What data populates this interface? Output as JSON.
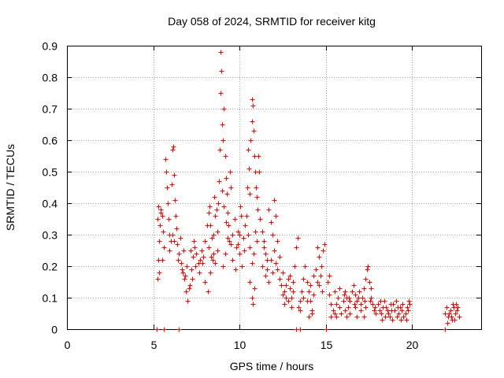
{
  "chart_data": {
    "type": "scatter",
    "title": "Day 058 of 2024, SRMTID for receiver kitg",
    "xlabel": "GPS time / hours",
    "ylabel": "SRMTID / TECUs",
    "xlim": [
      0,
      24
    ],
    "ylim": [
      0,
      0.9
    ],
    "xticks": [
      0,
      5,
      10,
      15,
      20
    ],
    "xtick_labels": [
      "0",
      "5",
      "10",
      "15",
      "20"
    ],
    "yticks": [
      0,
      0.1,
      0.2,
      0.3,
      0.4,
      0.5,
      0.6,
      0.7,
      0.8,
      0.9
    ],
    "ytick_labels": [
      "0",
      "0.1",
      "0.2",
      "0.3",
      "0.4",
      "0.5",
      "0.6",
      "0.7",
      "0.8",
      "0.9"
    ],
    "grid": true,
    "marker": "+",
    "color": "#ff0000",
    "series": [
      {
        "name": "SRMTID",
        "points": [
          [
            5.2,
            0.0
          ],
          [
            5.6,
            0.0
          ],
          [
            6.5,
            0.0
          ],
          [
            13.3,
            0.0
          ],
          [
            13.5,
            0.0
          ],
          [
            15.0,
            0.0
          ],
          [
            21.9,
            0.0
          ],
          [
            5.25,
            0.16
          ],
          [
            5.3,
            0.22
          ],
          [
            5.35,
            0.28
          ],
          [
            5.4,
            0.33
          ],
          [
            5.45,
            0.37
          ],
          [
            5.5,
            0.36
          ],
          [
            5.55,
            0.31
          ],
          [
            5.6,
            0.26
          ],
          [
            5.3,
            0.39
          ],
          [
            5.45,
            0.38
          ],
          [
            5.25,
            0.35
          ],
          [
            5.35,
            0.18
          ],
          [
            5.5,
            0.22
          ],
          [
            5.7,
            0.54
          ],
          [
            5.75,
            0.5
          ],
          [
            5.8,
            0.45
          ],
          [
            5.85,
            0.4
          ],
          [
            5.9,
            0.35
          ],
          [
            5.95,
            0.3
          ],
          [
            6.0,
            0.28
          ],
          [
            6.05,
            0.46
          ],
          [
            6.1,
            0.57
          ],
          [
            6.15,
            0.58
          ],
          [
            6.2,
            0.49
          ],
          [
            6.25,
            0.41
          ],
          [
            6.3,
            0.36
          ],
          [
            6.35,
            0.32
          ],
          [
            6.1,
            0.3
          ],
          [
            5.95,
            0.25
          ],
          [
            6.2,
            0.28
          ],
          [
            6.4,
            0.27
          ],
          [
            6.5,
            0.24
          ],
          [
            6.6,
            0.21
          ],
          [
            6.7,
            0.18
          ],
          [
            6.8,
            0.16
          ],
          [
            6.9,
            0.12
          ],
          [
            7.0,
            0.09
          ],
          [
            7.1,
            0.14
          ],
          [
            7.2,
            0.19
          ],
          [
            7.3,
            0.23
          ],
          [
            7.4,
            0.26
          ],
          [
            7.5,
            0.24
          ],
          [
            7.6,
            0.21
          ],
          [
            7.7,
            0.22
          ],
          [
            7.8,
            0.25
          ],
          [
            7.9,
            0.23
          ],
          [
            6.55,
            0.29
          ],
          [
            6.75,
            0.25
          ],
          [
            6.95,
            0.2
          ],
          [
            7.15,
            0.25
          ],
          [
            7.35,
            0.28
          ],
          [
            6.45,
            0.22
          ],
          [
            6.65,
            0.19
          ],
          [
            6.85,
            0.17
          ],
          [
            7.05,
            0.13
          ],
          [
            7.25,
            0.16
          ],
          [
            7.45,
            0.2
          ],
          [
            7.65,
            0.18
          ],
          [
            7.85,
            0.21
          ],
          [
            8.0,
            0.28
          ],
          [
            8.1,
            0.33
          ],
          [
            8.2,
            0.37
          ],
          [
            8.25,
            0.39
          ],
          [
            8.3,
            0.33
          ],
          [
            8.4,
            0.29
          ],
          [
            8.5,
            0.24
          ],
          [
            8.6,
            0.21
          ],
          [
            8.7,
            0.25
          ],
          [
            8.0,
            0.15
          ],
          [
            8.15,
            0.12
          ],
          [
            8.3,
            0.18
          ],
          [
            8.45,
            0.22
          ],
          [
            8.55,
            0.42
          ],
          [
            8.6,
            0.36
          ],
          [
            8.65,
            0.38
          ],
          [
            8.2,
            0.26
          ],
          [
            8.35,
            0.23
          ],
          [
            8.5,
            0.3
          ],
          [
            8.7,
            0.31
          ],
          [
            8.75,
            0.4
          ],
          [
            8.8,
            0.47
          ],
          [
            8.85,
            0.57
          ],
          [
            8.9,
            0.75
          ],
          [
            8.95,
            0.82
          ],
          [
            8.9,
            0.88
          ],
          [
            9.0,
            0.65
          ],
          [
            9.05,
            0.6
          ],
          [
            9.1,
            0.7
          ],
          [
            9.15,
            0.55
          ],
          [
            9.2,
            0.48
          ],
          [
            9.25,
            0.43
          ],
          [
            9.3,
            0.37
          ],
          [
            9.35,
            0.33
          ],
          [
            9.4,
            0.28
          ],
          [
            9.45,
            0.5
          ],
          [
            9.5,
            0.45
          ],
          [
            9.0,
            0.44
          ],
          [
            9.1,
            0.39
          ],
          [
            9.2,
            0.34
          ],
          [
            9.3,
            0.29
          ],
          [
            9.15,
            0.24
          ],
          [
            9.05,
            0.2
          ],
          [
            9.5,
            0.27
          ],
          [
            9.6,
            0.3
          ],
          [
            9.7,
            0.35
          ],
          [
            9.8,
            0.26
          ],
          [
            9.9,
            0.31
          ],
          [
            10.0,
            0.24
          ],
          [
            10.05,
            0.39
          ],
          [
            10.1,
            0.36
          ],
          [
            10.2,
            0.29
          ],
          [
            10.3,
            0.33
          ],
          [
            9.6,
            0.22
          ],
          [
            9.75,
            0.19
          ],
          [
            9.9,
            0.27
          ],
          [
            10.0,
            0.3
          ],
          [
            10.15,
            0.2
          ],
          [
            10.25,
            0.25
          ],
          [
            10.4,
            0.36
          ],
          [
            10.45,
            0.45
          ],
          [
            10.5,
            0.57
          ],
          [
            10.55,
            0.51
          ],
          [
            10.6,
            0.43
          ],
          [
            10.65,
            0.6
          ],
          [
            10.7,
            0.66
          ],
          [
            10.72,
            0.73
          ],
          [
            10.75,
            0.71
          ],
          [
            10.8,
            0.63
          ],
          [
            10.85,
            0.55
          ],
          [
            10.9,
            0.5
          ],
          [
            10.95,
            0.45
          ],
          [
            11.0,
            0.42
          ],
          [
            11.05,
            0.38
          ],
          [
            11.1,
            0.55
          ],
          [
            11.15,
            0.5
          ],
          [
            10.5,
            0.3
          ],
          [
            10.6,
            0.26
          ],
          [
            10.7,
            0.21
          ],
          [
            10.8,
            0.24
          ],
          [
            10.9,
            0.31
          ],
          [
            11.0,
            0.28
          ],
          [
            10.6,
            0.15
          ],
          [
            10.7,
            0.1
          ],
          [
            10.75,
            0.08
          ],
          [
            10.85,
            0.13
          ],
          [
            11.2,
            0.35
          ],
          [
            11.3,
            0.31
          ],
          [
            11.4,
            0.28
          ],
          [
            11.5,
            0.24
          ],
          [
            11.6,
            0.22
          ],
          [
            11.7,
            0.38
          ],
          [
            11.8,
            0.34
          ],
          [
            11.9,
            0.3
          ],
          [
            12.0,
            0.41
          ],
          [
            12.1,
            0.36
          ],
          [
            12.2,
            0.28
          ],
          [
            12.3,
            0.23
          ],
          [
            11.3,
            0.2
          ],
          [
            11.5,
            0.17
          ],
          [
            11.7,
            0.15
          ],
          [
            11.9,
            0.18
          ],
          [
            12.1,
            0.21
          ],
          [
            12.3,
            0.16
          ],
          [
            11.4,
            0.26
          ],
          [
            11.6,
            0.19
          ],
          [
            11.8,
            0.22
          ],
          [
            12.0,
            0.25
          ],
          [
            12.2,
            0.19
          ],
          [
            12.4,
            0.14
          ],
          [
            12.5,
            0.11
          ],
          [
            12.6,
            0.08
          ],
          [
            12.7,
            0.1
          ],
          [
            12.8,
            0.16
          ],
          [
            12.9,
            0.13
          ],
          [
            13.0,
            0.1
          ],
          [
            13.1,
            0.15
          ],
          [
            13.2,
            0.2
          ],
          [
            13.3,
            0.26
          ],
          [
            13.35,
            0.29
          ],
          [
            12.5,
            0.18
          ],
          [
            12.7,
            0.14
          ],
          [
            12.9,
            0.17
          ],
          [
            13.1,
            0.12
          ],
          [
            12.6,
            0.12
          ],
          [
            12.8,
            0.09
          ],
          [
            13.0,
            0.07
          ],
          [
            13.4,
            0.07
          ],
          [
            13.5,
            0.09
          ],
          [
            13.6,
            0.12
          ],
          [
            13.7,
            0.16
          ],
          [
            13.8,
            0.2
          ],
          [
            13.9,
            0.15
          ],
          [
            14.0,
            0.12
          ],
          [
            14.1,
            0.09
          ],
          [
            14.2,
            0.06
          ],
          [
            14.3,
            0.11
          ],
          [
            14.4,
            0.19
          ],
          [
            14.5,
            0.26
          ],
          [
            14.6,
            0.23
          ],
          [
            14.7,
            0.17
          ],
          [
            14.8,
            0.12
          ],
          [
            14.85,
            0.25
          ],
          [
            14.9,
            0.27
          ],
          [
            14.5,
            0.15
          ],
          [
            14.3,
            0.17
          ],
          [
            14.1,
            0.14
          ],
          [
            13.9,
            0.09
          ],
          [
            13.7,
            0.1
          ],
          [
            13.5,
            0.06
          ],
          [
            14.0,
            0.04
          ],
          [
            14.2,
            0.05
          ],
          [
            14.6,
            0.14
          ],
          [
            14.75,
            0.2
          ],
          [
            15.1,
            0.15
          ],
          [
            15.2,
            0.11
          ],
          [
            15.3,
            0.08
          ],
          [
            15.4,
            0.06
          ],
          [
            15.5,
            0.05
          ],
          [
            15.6,
            0.08
          ],
          [
            15.7,
            0.1
          ],
          [
            15.8,
            0.07
          ],
          [
            15.9,
            0.05
          ],
          [
            16.0,
            0.09
          ],
          [
            16.1,
            0.12
          ],
          [
            16.2,
            0.1
          ],
          [
            16.3,
            0.07
          ],
          [
            16.4,
            0.09
          ],
          [
            16.5,
            0.12
          ],
          [
            16.6,
            0.14
          ],
          [
            16.7,
            0.11
          ],
          [
            16.8,
            0.09
          ],
          [
            16.9,
            0.1
          ],
          [
            17.0,
            0.08
          ],
          [
            17.1,
            0.1
          ],
          [
            17.2,
            0.13
          ],
          [
            17.3,
            0.16
          ],
          [
            17.4,
            0.19
          ],
          [
            17.45,
            0.2
          ],
          [
            17.5,
            0.15
          ],
          [
            17.6,
            0.1
          ],
          [
            17.7,
            0.08
          ],
          [
            17.8,
            0.06
          ],
          [
            17.9,
            0.05
          ],
          [
            15.2,
            0.17
          ],
          [
            15.5,
            0.12
          ],
          [
            15.8,
            0.13
          ],
          [
            16.1,
            0.06
          ],
          [
            16.4,
            0.05
          ],
          [
            16.7,
            0.07
          ],
          [
            17.0,
            0.06
          ],
          [
            17.3,
            0.07
          ],
          [
            17.6,
            0.13
          ],
          [
            15.3,
            0.04
          ],
          [
            15.6,
            0.04
          ],
          [
            16.2,
            0.04
          ],
          [
            16.8,
            0.04
          ],
          [
            17.2,
            0.04
          ],
          [
            16.05,
            0.11
          ],
          [
            16.35,
            0.1
          ],
          [
            16.65,
            0.08
          ],
          [
            16.95,
            0.12
          ],
          [
            17.25,
            0.09
          ],
          [
            17.55,
            0.09
          ],
          [
            17.85,
            0.07
          ],
          [
            18.0,
            0.08
          ],
          [
            18.1,
            0.06
          ],
          [
            18.2,
            0.05
          ],
          [
            18.3,
            0.07
          ],
          [
            18.4,
            0.09
          ],
          [
            18.5,
            0.07
          ],
          [
            18.6,
            0.05
          ],
          [
            18.7,
            0.04
          ],
          [
            18.8,
            0.06
          ],
          [
            18.9,
            0.08
          ],
          [
            19.0,
            0.06
          ],
          [
            19.1,
            0.04
          ],
          [
            19.2,
            0.05
          ],
          [
            19.3,
            0.07
          ],
          [
            19.4,
            0.06
          ],
          [
            19.5,
            0.04
          ],
          [
            19.6,
            0.05
          ],
          [
            19.7,
            0.07
          ],
          [
            19.8,
            0.09
          ],
          [
            19.85,
            0.08
          ],
          [
            18.15,
            0.09
          ],
          [
            18.45,
            0.04
          ],
          [
            18.75,
            0.08
          ],
          [
            19.05,
            0.09
          ],
          [
            19.35,
            0.03
          ],
          [
            19.65,
            0.03
          ],
          [
            19.75,
            0.06
          ],
          [
            18.25,
            0.03
          ],
          [
            18.55,
            0.06
          ],
          [
            18.85,
            0.03
          ],
          [
            19.15,
            0.07
          ],
          [
            19.45,
            0.08
          ],
          [
            21.9,
            0.05
          ],
          [
            22.0,
            0.07
          ],
          [
            22.1,
            0.04
          ],
          [
            22.2,
            0.06
          ],
          [
            22.3,
            0.03
          ],
          [
            22.4,
            0.07
          ],
          [
            22.5,
            0.05
          ],
          [
            22.6,
            0.06
          ],
          [
            22.7,
            0.04
          ],
          [
            22.05,
            0.02
          ],
          [
            22.35,
            0.08
          ],
          [
            22.65,
            0.07
          ],
          [
            22.15,
            0.05
          ],
          [
            22.45,
            0.03
          ],
          [
            22.55,
            0.08
          ],
          [
            22.25,
            0.04
          ]
        ]
      }
    ]
  }
}
